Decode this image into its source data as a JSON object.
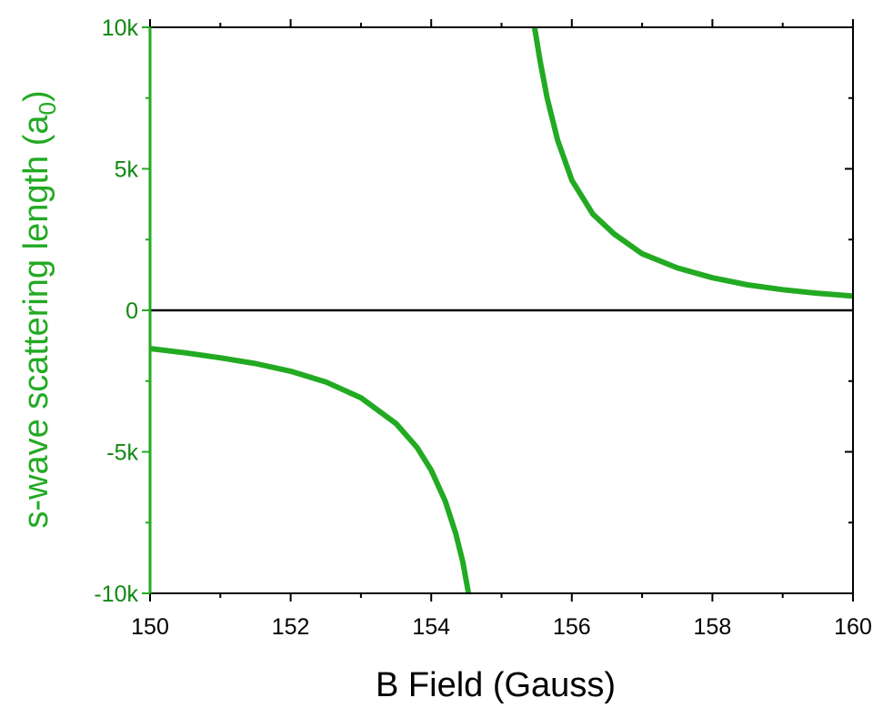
{
  "chart_data": {
    "type": "line",
    "title": "",
    "xlabel": "B Field (Gauss)",
    "ylabel": "s-wave scattering length (a",
    "ylabel_subscript": "0",
    "ylabel_suffix": ")",
    "xlim": [
      150,
      160
    ],
    "ylim": [
      -10000,
      10000
    ],
    "x_ticks": [
      150,
      152,
      154,
      156,
      158,
      160
    ],
    "x_tick_labels": [
      "150",
      "152",
      "154",
      "156",
      "158",
      "160"
    ],
    "y_ticks": [
      -10000,
      -5000,
      0,
      5000,
      10000
    ],
    "y_tick_labels": [
      "-10k",
      "-5k",
      "0",
      "5k",
      "10k"
    ],
    "grid": false,
    "zero_line": true,
    "series": [
      {
        "color": "#22aa22",
        "segments": [
          {
            "x": [
              150.0,
              150.5,
              151.0,
              151.5,
              152.0,
              152.5,
              153.0,
              153.5,
              153.8,
              154.0,
              154.2,
              154.35,
              154.45,
              154.53
            ],
            "y": [
              -1350,
              -1500,
              -1680,
              -1880,
              -2150,
              -2530,
              -3090,
              -4000,
              -4850,
              -5650,
              -6750,
              -7900,
              -8900,
              -10000
            ]
          },
          {
            "x": [
              155.47,
              155.55,
              155.65,
              155.8,
              156.0,
              156.3,
              156.6,
              157.0,
              157.5,
              158.0,
              158.5,
              159.0,
              159.5,
              160.0
            ],
            "y": [
              10000,
              8800,
              7500,
              6000,
              4600,
              3400,
              2700,
              2000,
              1500,
              1150,
              900,
              730,
              600,
              500
            ]
          }
        ]
      }
    ],
    "colors": {
      "left_axis": "#22aa22",
      "left_labels": "#118811",
      "frame": "#000000",
      "curve": "#22aa22"
    }
  }
}
